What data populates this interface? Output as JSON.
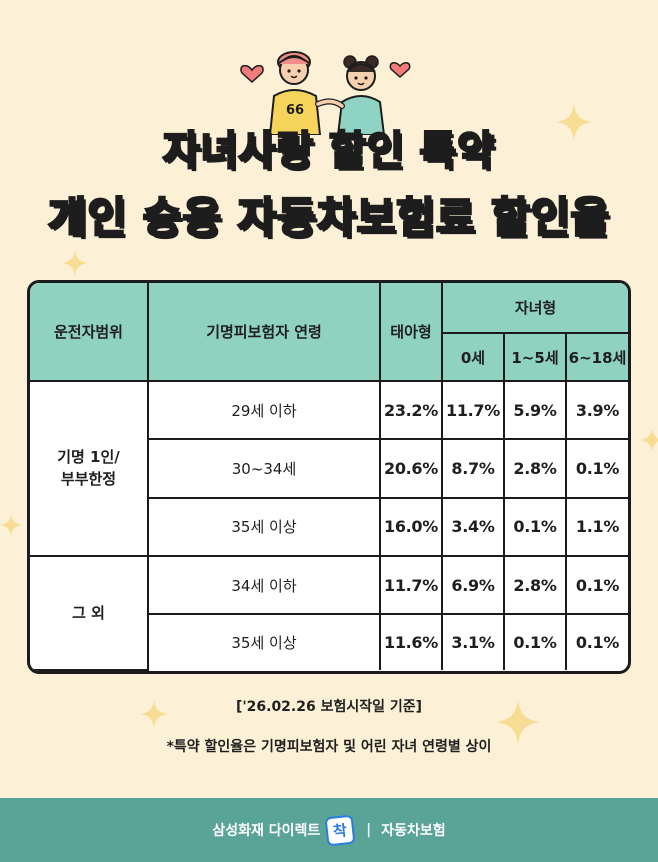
{
  "title": {
    "line1": "자녀사랑 할인 특약",
    "line2": "개인 승용 자동차보험료 할인율"
  },
  "hero": {
    "jersey_number": "66"
  },
  "table": {
    "headers": {
      "driver_scope": "운전자범위",
      "insured_age": "기명피보험자 연령",
      "fetal": "태아형",
      "child": "자녀형",
      "child_sub": [
        "0세",
        "1~5세",
        "6~18세"
      ]
    },
    "groups": [
      {
        "label_line1": "기명 1인/",
        "label_line2": "부부한정",
        "rows": [
          {
            "age": "29세 이하",
            "values": [
              "23.2%",
              "11.7%",
              "5.9%",
              "3.9%"
            ]
          },
          {
            "age": "30~34세",
            "values": [
              "20.6%",
              "8.7%",
              "2.8%",
              "0.1%"
            ]
          },
          {
            "age": "35세 이상",
            "values": [
              "16.0%",
              "3.4%",
              "0.1%",
              "1.1%"
            ]
          }
        ]
      },
      {
        "label_line1": "그 외",
        "label_line2": "",
        "rows": [
          {
            "age": "34세 이하",
            "values": [
              "11.7%",
              "6.9%",
              "2.8%",
              "0.1%"
            ]
          },
          {
            "age": "35세 이상",
            "values": [
              "11.6%",
              "3.1%",
              "0.1%",
              "0.1%"
            ]
          }
        ]
      }
    ]
  },
  "notes": {
    "date_basis": "['26.02.26 보험시작일 기준]",
    "disclaimer": "*특약 할인율은 기명피보험자 및 어린 자녀 연령별 상이"
  },
  "footer": {
    "brand": "삼성화재 다이렉트",
    "logo_text": "착",
    "separator": "|",
    "product": "자동차보험"
  },
  "colors": {
    "background": "#fcf1d6",
    "header_fill": "#8ed2bf",
    "title_pink": "#f4a29a",
    "footer": "#5aa397"
  }
}
